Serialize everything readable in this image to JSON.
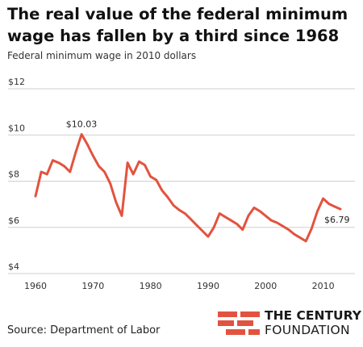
{
  "header": {
    "title": "The real value of the federal minimum wage has fallen by a third since 1968",
    "subtitle": "Federal minimum wage in 2010 dollars"
  },
  "footer": {
    "source": "Source: Department of Labor",
    "logo_line1": "THE CENTURY",
    "logo_line2": "FOUNDATION"
  },
  "colors": {
    "line": "#e2533f",
    "grid": "#cfcfcf",
    "logo": "#e2533f"
  },
  "chart_data": {
    "type": "line",
    "title": "The real value of the federal minimum wage has fallen by a third since 1968",
    "subtitle": "Federal minimum wage in 2010 dollars",
    "xlabel": "",
    "ylabel": "",
    "xlim": [
      1960,
      2013
    ],
    "ylim": [
      4,
      12
    ],
    "x_ticks": [
      1960,
      1970,
      1980,
      1990,
      2000,
      2010
    ],
    "y_ticks": [
      4,
      6,
      8,
      10,
      12
    ],
    "y_tick_labels": [
      "$4",
      "$6",
      "$8",
      "$10",
      "$12"
    ],
    "grid": "horizontal",
    "series": [
      {
        "x": [
          1960,
          1961,
          1962,
          1963,
          1964,
          1965,
          1966,
          1967,
          1968,
          1969,
          1970,
          1971,
          1972,
          1973,
          1974,
          1975,
          1976,
          1977,
          1978,
          1979,
          1980,
          1981,
          1982,
          1983,
          1984,
          1985,
          1986,
          1987,
          1988,
          1989,
          1990,
          1991,
          1992,
          1993,
          1994,
          1995,
          1996,
          1997,
          1998,
          1999,
          2000,
          2001,
          2002,
          2003,
          2004,
          2005,
          2006,
          2007,
          2008,
          2009,
          2010,
          2011,
          2012,
          2013
        ],
        "values": [
          7.35,
          8.4,
          8.3,
          8.9,
          8.8,
          8.65,
          8.4,
          9.25,
          10.03,
          9.6,
          9.1,
          8.65,
          8.4,
          7.9,
          7.1,
          6.5,
          8.8,
          8.3,
          8.85,
          8.7,
          8.2,
          8.05,
          7.6,
          7.3,
          6.95,
          6.75,
          6.6,
          6.35,
          6.1,
          5.85,
          5.6,
          6.0,
          6.6,
          6.45,
          6.3,
          6.15,
          5.9,
          6.5,
          6.85,
          6.7,
          6.5,
          6.3,
          6.2,
          6.05,
          5.9,
          5.7,
          5.55,
          5.4,
          5.95,
          6.7,
          7.25,
          7.02,
          6.9,
          6.79
        ]
      }
    ],
    "annotations": [
      {
        "x": 1968,
        "y": 10.03,
        "text": "$10.03"
      },
      {
        "x": 2013,
        "y": 6.79,
        "text": "$6.79"
      }
    ]
  }
}
